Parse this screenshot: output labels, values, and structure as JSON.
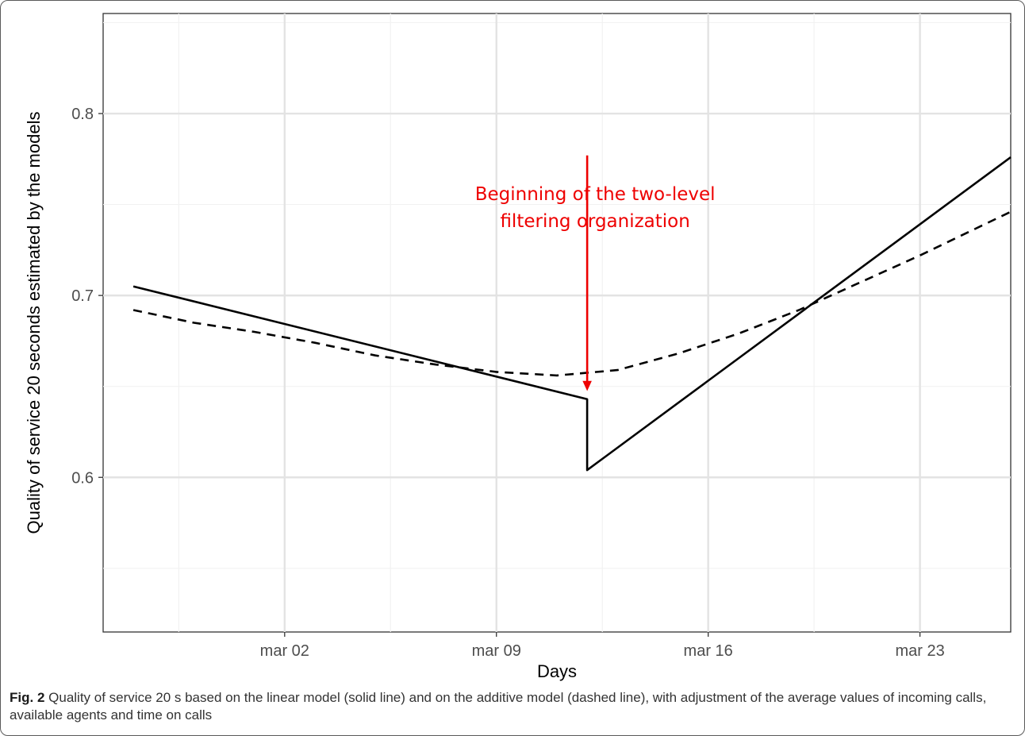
{
  "chart_data": {
    "type": "line",
    "title": "",
    "xlabel": "Days",
    "ylabel": "Quality of service 20 seconds estimated by the models",
    "x_ticks": [
      "mar 02",
      "mar 09",
      "mar 16",
      "mar 23"
    ],
    "x_tick_dates": [
      "2020-03-02",
      "2020-03-09",
      "2020-03-16",
      "2020-03-23"
    ],
    "y_ticks": [
      "0.6",
      "0.7",
      "0.8"
    ],
    "y_tick_values": [
      0.6,
      0.7,
      0.8
    ],
    "xlim": [
      "2020-02-25",
      "2020-03-26"
    ],
    "ylim": [
      0.515,
      0.855
    ],
    "grid": true,
    "legend": "none",
    "series": [
      {
        "style": "solid",
        "color": "#000000",
        "points": [
          {
            "x": "2020-02-26",
            "y": 0.705
          },
          {
            "x": "2020-03-12",
            "y": 0.643
          },
          {
            "x": "2020-03-12",
            "y": 0.604
          },
          {
            "x": "2020-03-26",
            "y": 0.776
          }
        ]
      },
      {
        "style": "dashed",
        "color": "#000000",
        "points": [
          {
            "x": "2020-02-26",
            "y": 0.692
          },
          {
            "x": "2020-02-28",
            "y": 0.685
          },
          {
            "x": "2020-03-01",
            "y": 0.68
          },
          {
            "x": "2020-03-03",
            "y": 0.674
          },
          {
            "x": "2020-03-05",
            "y": 0.667
          },
          {
            "x": "2020-03-07",
            "y": 0.662
          },
          {
            "x": "2020-03-09",
            "y": 0.658
          },
          {
            "x": "2020-03-11",
            "y": 0.656
          },
          {
            "x": "2020-03-13",
            "y": 0.659
          },
          {
            "x": "2020-03-15",
            "y": 0.668
          },
          {
            "x": "2020-03-17",
            "y": 0.679
          },
          {
            "x": "2020-03-19",
            "y": 0.692
          },
          {
            "x": "2020-03-21",
            "y": 0.707
          },
          {
            "x": "2020-03-23",
            "y": 0.722
          },
          {
            "x": "2020-03-26",
            "y": 0.746
          }
        ]
      }
    ],
    "annotations": [
      {
        "text_lines": [
          "Beginning of the two-level",
          "filtering organization"
        ],
        "color": "#ee0000",
        "arrow_x": "2020-03-12",
        "arrow_from_y": 0.777,
        "arrow_to_y": 0.648
      }
    ]
  },
  "caption": {
    "label": "Fig. 2",
    "text": "Quality of service 20 s based on the linear model (solid line) and on the additive model (dashed line), with adjustment of the average values of incoming calls, available agents and time on calls"
  }
}
